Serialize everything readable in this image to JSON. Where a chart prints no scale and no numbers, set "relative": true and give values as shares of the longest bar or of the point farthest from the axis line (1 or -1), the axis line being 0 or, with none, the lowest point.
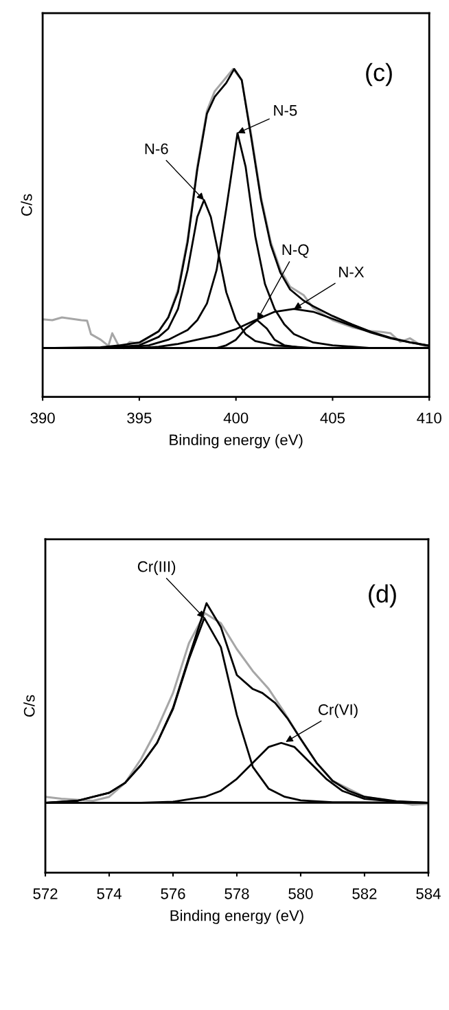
{
  "chart_data": [
    {
      "type": "line",
      "relative": true,
      "xlabel": "Binding energy (eV)",
      "ylabel": "C/s",
      "xlim": [
        390,
        410
      ],
      "xticks": [
        390,
        395,
        400,
        405,
        410
      ],
      "tick_labels": "x",
      "grid": false,
      "legend": false,
      "marker": "none",
      "line_style": "solid",
      "ref_lines": [
        {
          "axis": "y",
          "value": 0,
          "color": "#000000"
        }
      ],
      "series": [
        {
          "color": "#a6a6a6",
          "x": [
            390,
            390.5,
            391,
            391.5,
            392,
            392.3,
            392.5,
            393,
            393.4,
            393.6,
            393.9,
            394.2,
            394.5,
            395,
            396,
            396.5,
            397,
            397.5,
            398,
            398.5,
            398.9,
            399.5,
            399.85,
            400.3,
            400.8,
            401.3,
            401.8,
            402.3,
            402.8,
            403.5,
            404,
            405,
            406,
            406.8,
            407.5,
            408,
            408.5,
            409,
            409.5,
            410
          ],
          "values": [
            0.103,
            0.1,
            0.11,
            0.105,
            0.1,
            0.098,
            0.05,
            0.03,
            0.008,
            0.053,
            0.013,
            0,
            0.022,
            0.017,
            0.06,
            0.11,
            0.21,
            0.39,
            0.65,
            0.85,
            0.92,
            0.97,
            1.0,
            0.96,
            0.76,
            0.54,
            0.38,
            0.28,
            0.22,
            0.19,
            0.143,
            0.1,
            0.075,
            0.062,
            0.058,
            0.053,
            0.022,
            0.035,
            0.013,
            0.004
          ]
        },
        {
          "color": "#000000",
          "x": [
            390,
            393,
            394,
            395,
            396,
            396.5,
            397,
            397.5,
            398,
            398.5,
            398.9,
            399.5,
            399.91,
            400.3,
            400.8,
            401.3,
            401.8,
            402.3,
            402.8,
            403.5,
            404,
            405,
            406,
            407,
            408,
            409,
            410
          ],
          "values": [
            0,
            0.003,
            0.01,
            0.02,
            0.06,
            0.11,
            0.2,
            0.38,
            0.64,
            0.84,
            0.9,
            0.95,
            1.0,
            0.96,
            0.75,
            0.53,
            0.37,
            0.27,
            0.21,
            0.17,
            0.15,
            0.115,
            0.085,
            0.058,
            0.037,
            0.021,
            0.009
          ]
        },
        {
          "color": "#000000",
          "x": [
            390,
            393,
            395,
            396,
            396.5,
            397,
            397.5,
            398,
            398.35,
            398.7,
            399,
            399.5,
            400,
            400.5,
            401,
            402,
            404,
            410
          ],
          "values": [
            0,
            0,
            0.01,
            0.04,
            0.07,
            0.14,
            0.28,
            0.47,
            0.53,
            0.47,
            0.37,
            0.2,
            0.1,
            0.05,
            0.025,
            0.01,
            0,
            0
          ]
        },
        {
          "color": "#000000",
          "x": [
            390,
            394,
            395.5,
            396.5,
            397.5,
            398,
            398.5,
            399,
            399.5,
            400.08,
            400.5,
            401,
            401.5,
            402,
            402.5,
            403,
            404,
            405,
            407,
            410
          ],
          "values": [
            0,
            0,
            0.01,
            0.03,
            0.065,
            0.1,
            0.16,
            0.28,
            0.5,
            0.77,
            0.65,
            0.4,
            0.23,
            0.14,
            0.085,
            0.05,
            0.02,
            0.01,
            0,
            0
          ]
        },
        {
          "color": "#000000",
          "x": [
            390,
            399,
            399.5,
            400,
            400.5,
            401.1,
            401.6,
            402,
            402.5,
            403.5,
            410
          ],
          "values": [
            0,
            0,
            0.01,
            0.03,
            0.07,
            0.1,
            0.07,
            0.03,
            0.01,
            0,
            0
          ]
        },
        {
          "color": "#000000",
          "x": [
            390,
            395,
            396,
            397,
            398,
            399,
            400,
            401,
            402,
            403,
            404,
            405,
            406,
            407,
            408,
            409,
            410
          ],
          "values": [
            0,
            0,
            0.005,
            0.015,
            0.03,
            0.045,
            0.068,
            0.1,
            0.13,
            0.14,
            0.13,
            0.105,
            0.08,
            0.055,
            0.035,
            0.02,
            0.008
          ]
        }
      ],
      "annotations": [
        "(c)",
        {
          "text": "N-5",
          "x": 400.08,
          "y": 0.77
        },
        {
          "text": "N-6",
          "x": 398.35,
          "y": 0.53
        },
        {
          "text": "N-Q",
          "x": 401.1,
          "y": 0.1
        },
        {
          "text": "N-X",
          "x": 403,
          "y": 0.14
        }
      ]
    },
    {
      "type": "line",
      "relative": true,
      "xlabel": "Binding energy (eV)",
      "ylabel": "C/s",
      "xlim": [
        572,
        584
      ],
      "xticks": [
        572,
        574,
        576,
        578,
        580,
        582,
        584
      ],
      "tick_labels": "x",
      "grid": false,
      "legend": false,
      "marker": "none",
      "line_style": "solid",
      "ref_lines": [
        {
          "axis": "y",
          "value": 0,
          "color": "#000000"
        }
      ],
      "series": [
        {
          "color": "#a6a6a6",
          "x": [
            572,
            572.5,
            573,
            573.5,
            574,
            574.5,
            575,
            575.5,
            576,
            576.5,
            577,
            577.5,
            578,
            578.5,
            579,
            579.5,
            580,
            580.5,
            581,
            582,
            583,
            583.5,
            584
          ],
          "values": [
            0.03,
            0.02,
            0.015,
            0.01,
            0.03,
            0.1,
            0.22,
            0.37,
            0.55,
            0.8,
            0.95,
            0.9,
            0.77,
            0.66,
            0.57,
            0.45,
            0.32,
            0.2,
            0.11,
            0.03,
            0.005,
            -0.01,
            -0.005
          ]
        },
        {
          "color": "#000000",
          "x": [
            572,
            573,
            574,
            574.5,
            575,
            575.5,
            576,
            576.5,
            577.05,
            577.5,
            578,
            578.5,
            578.8,
            579.2,
            579.6,
            580,
            580.5,
            581,
            581.5,
            582,
            583,
            584
          ],
          "values": [
            0,
            0.01,
            0.05,
            0.1,
            0.19,
            0.3,
            0.475,
            0.73,
            1.0,
            0.88,
            0.64,
            0.57,
            0.55,
            0.5,
            0.42,
            0.32,
            0.2,
            0.11,
            0.06,
            0.03,
            0.008,
            0
          ]
        },
        {
          "color": "#000000",
          "x": [
            572,
            573,
            574,
            574.5,
            575,
            575.5,
            576,
            576.5,
            576.98,
            577.5,
            578,
            578.5,
            579,
            579.5,
            580,
            581,
            584
          ],
          "values": [
            0,
            0.01,
            0.05,
            0.1,
            0.19,
            0.3,
            0.47,
            0.72,
            0.926,
            0.78,
            0.44,
            0.18,
            0.07,
            0.03,
            0.012,
            0.003,
            0
          ]
        },
        {
          "color": "#000000",
          "x": [
            572,
            575,
            576,
            577,
            577.5,
            578,
            578.5,
            579,
            579.39,
            579.8,
            580.3,
            580.8,
            581.3,
            582,
            583,
            584
          ],
          "values": [
            0,
            0,
            0.005,
            0.03,
            0.06,
            0.12,
            0.2,
            0.28,
            0.3,
            0.28,
            0.2,
            0.12,
            0.06,
            0.02,
            0.005,
            0
          ]
        }
      ],
      "annotations": [
        "(d)",
        {
          "text": "Cr(III)",
          "x": 576.98,
          "y": 0.926
        },
        {
          "text": "Cr(VI)",
          "x": 579.53,
          "y": 0.305
        }
      ]
    }
  ]
}
